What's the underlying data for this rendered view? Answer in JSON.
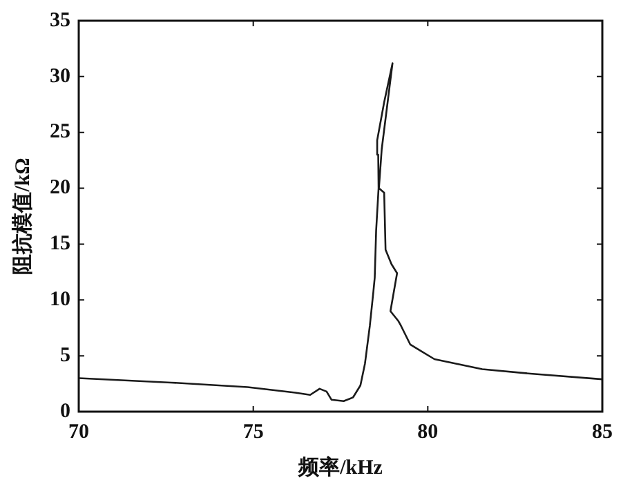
{
  "chart_data": {
    "type": "line",
    "xlabel": "频率/kHz",
    "ylabel": "阻抗模值/kΩ",
    "xlim": [
      70,
      85
    ],
    "xticks": [
      70,
      75,
      80,
      85
    ],
    "ylim": [
      0,
      35
    ],
    "yticks": [
      0,
      5,
      10,
      15,
      20,
      25,
      30,
      35
    ],
    "grid": false,
    "legend": false,
    "marker": "none",
    "line_style": "solid",
    "series": [
      {
        "color": "#1a1a1a",
        "x": [
          70,
          72.65,
          74.84,
          76.2,
          76.63,
          76.9,
          77.1,
          77.24,
          77.59,
          77.86,
          78.07,
          78.2,
          78.34,
          78.44,
          78.48,
          78.52,
          78.59,
          78.58,
          78.55,
          78.75,
          78.99,
          78.68,
          78.6,
          78.75,
          78.79,
          78.96,
          79.12,
          78.93,
          79.16,
          79.23,
          79.5,
          80.19,
          81.56,
          82.94,
          85
        ],
        "values": [
          3.0,
          2.6,
          2.2,
          1.7,
          1.5,
          2.05,
          1.8,
          1.07,
          0.94,
          1.28,
          2.35,
          4.3,
          7.7,
          10.7,
          12,
          16.2,
          20,
          23,
          24.3,
          27.7,
          31.2,
          23.5,
          20,
          19.6,
          14.5,
          13.2,
          12.4,
          9,
          8.1,
          7.7,
          6,
          4.7,
          3.8,
          3.4,
          2.9
        ]
      }
    ]
  }
}
